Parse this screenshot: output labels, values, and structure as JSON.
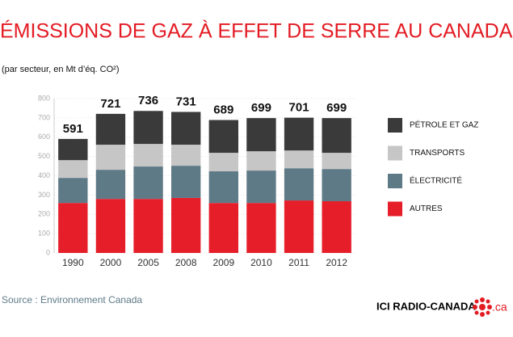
{
  "chart_data": {
    "type": "stacked_bar",
    "title": "ÉMISSIONS DE GAZ À EFFET DE SERRE AU CANADA",
    "subtitle": "(par secteur, en Mt d’éq. CO²)",
    "categories": [
      "1990",
      "2000",
      "2005",
      "2008",
      "2009",
      "2010",
      "2011",
      "2012"
    ],
    "series": [
      {
        "name": "AUTRES",
        "color": "#e61e2a",
        "values": [
          259,
          280,
          280,
          285,
          259,
          259,
          272,
          268
        ]
      },
      {
        "name": "ÉLECTRICITÉ",
        "color": "#5f7a87",
        "values": [
          130,
          151,
          168,
          167,
          164,
          168,
          167,
          167
        ]
      },
      {
        "name": "TRANSPORTS",
        "color": "#c6c6c6",
        "values": [
          92,
          130,
          117,
          109,
          96,
          100,
          92,
          84
        ]
      },
      {
        "name": "PÉTROLE ET GAZ",
        "color": "#3a3a3a",
        "values": [
          110,
          160,
          171,
          170,
          170,
          172,
          170,
          180
        ]
      }
    ],
    "totals": [
      591,
      721,
      736,
      731,
      689,
      699,
      701,
      699
    ],
    "ylim": [
      0,
      800
    ],
    "yticks": [
      0,
      100,
      200,
      300,
      400,
      500,
      600,
      700,
      800
    ],
    "grid": true,
    "legend": "right"
  },
  "source": "Source : Environnement Canada",
  "brand": {
    "name": "ICI RADIO-CANADA",
    "suffix": ".ca"
  }
}
